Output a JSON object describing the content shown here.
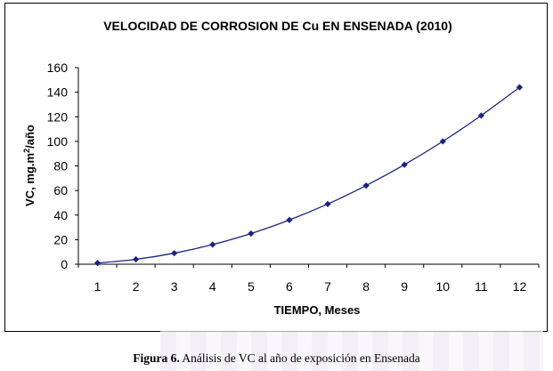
{
  "chart_data": {
    "type": "line",
    "title": "VELOCIDAD DE CORROSION DE Cu EN ENSENADA (2010)",
    "xlabel": "TIEMPO, Meses",
    "ylabel_main": "VC, mg.m",
    "ylabel_sup": "2",
    "ylabel_tail": "/año",
    "x": [
      1,
      2,
      3,
      4,
      5,
      6,
      7,
      8,
      9,
      10,
      11,
      12
    ],
    "y": [
      1,
      4,
      9,
      16,
      25,
      36,
      49,
      64,
      81,
      100,
      121,
      144
    ],
    "ylim": [
      0,
      160
    ],
    "yticks": [
      0,
      20,
      40,
      60,
      80,
      100,
      120,
      140,
      160
    ],
    "grid": false,
    "legend": "none",
    "series_color": "#1a237e"
  },
  "caption": {
    "label": "Figura 6.",
    "text": " Análisis de VC al año de exposición en Ensenada"
  }
}
